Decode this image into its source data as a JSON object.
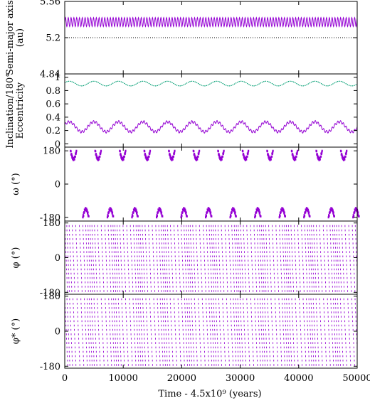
{
  "chart_data": [
    {
      "id": "semi_major_axis",
      "type": "line",
      "ylabel_lines": [
        "Semi-major axis",
        "(au)"
      ],
      "xlim": [
        0,
        50000
      ],
      "ylim": [
        4.84,
        5.56
      ],
      "yticks": [
        5.56,
        5.2,
        4.84
      ],
      "ytick_labels": [
        "5.56",
        "5.2",
        "4.84"
      ],
      "reference_lines": [
        {
          "y": 5.56,
          "style": "dashed"
        },
        {
          "y": 5.2,
          "style": "dotted"
        },
        {
          "y": 4.84,
          "style": "dashed"
        }
      ],
      "series": [
        {
          "color": "#9400d3",
          "mean": 5.355,
          "amplitude": 0.045,
          "oscillation_period": 480
        }
      ]
    },
    {
      "id": "inclination_eccentricity",
      "type": "line",
      "ylabel_lines": [
        "Inclination/180°",
        "Eccentricity"
      ],
      "xlim": [
        0,
        50000
      ],
      "ylim": [
        -0.05,
        1.05
      ],
      "yticks": [
        0,
        0.2,
        0.4,
        0.6,
        0.8,
        1
      ],
      "ytick_labels": [
        "0",
        "0.2",
        "0.4",
        "0.6",
        "0.8",
        "1"
      ],
      "series": [
        {
          "color": "#009e73",
          "style": "dotted",
          "mean": 0.905,
          "amplitude": 0.035,
          "period": 4200
        },
        {
          "color": "#9400d3",
          "style": "solid",
          "mean": 0.255,
          "amplitude": 0.075,
          "period": 4200,
          "fast_amplitude": 0.02,
          "fast_period": 480
        }
      ]
    },
    {
      "id": "omega",
      "type": "scatter",
      "ylabel": "ω (°)",
      "xlim": [
        0,
        50000
      ],
      "ylim": [
        -200,
        200
      ],
      "yticks": [
        180,
        0,
        -180
      ],
      "ytick_labels": [
        "180",
        "0",
        "-180"
      ],
      "arc_period": 4200,
      "upper_arcs_start": 1000,
      "lower_arcs_start": 3100,
      "series": [
        {
          "color": "#9400d3"
        }
      ]
    },
    {
      "id": "phi",
      "type": "scatter",
      "ylabel": "φ (°)",
      "xlim": [
        0,
        50000
      ],
      "ylim": [
        -190,
        190
      ],
      "yticks": [
        180,
        0,
        -180
      ],
      "ytick_labels": [
        "180",
        "0",
        "-180"
      ],
      "circulation_period": 480,
      "drift_period": 4200,
      "series": [
        {
          "color": "#9400d3"
        }
      ]
    },
    {
      "id": "phi_star",
      "type": "scatter",
      "ylabel": "φ* (°)",
      "xlim": [
        0,
        50000
      ],
      "ylim": [
        -190,
        190
      ],
      "yticks": [
        180,
        0,
        -180
      ],
      "ytick_labels": [
        "180",
        "0",
        "-180"
      ],
      "circulation_period": 520,
      "drift_period": 4200,
      "series": [
        {
          "color": "#9400d3"
        }
      ]
    }
  ],
  "xaxis": {
    "label": "Time - 4.5x10⁹ (years)",
    "ticks": [
      0,
      10000,
      20000,
      30000,
      40000,
      50000
    ],
    "tick_labels": [
      "0",
      "10000",
      "20000",
      "30000",
      "40000",
      "50000"
    ]
  }
}
